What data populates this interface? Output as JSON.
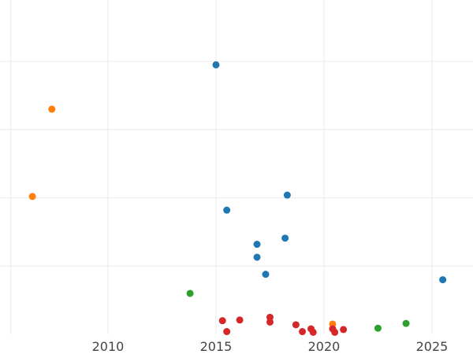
{
  "chart_data": {
    "type": "scatter",
    "title": "",
    "xlabel": "",
    "ylabel": "",
    "xlim": [
      2005.0,
      2026.9
    ],
    "ylim": [
      0,
      4.9
    ],
    "grid": true,
    "legend": "none",
    "x_ticks": [
      2010,
      2015,
      2020,
      2025
    ],
    "x_tick_labels": [
      "2010",
      "2015",
      "2020",
      "2025"
    ],
    "y_gridlines": [
      1,
      2,
      3,
      4
    ],
    "series": [
      {
        "color": "#1f77b4",
        "points": [
          {
            "x": 2015.0,
            "y": 3.95
          },
          {
            "x": 2015.5,
            "y": 1.82
          },
          {
            "x": 2016.9,
            "y": 1.32
          },
          {
            "x": 2016.9,
            "y": 1.13
          },
          {
            "x": 2017.3,
            "y": 0.88
          },
          {
            "x": 2018.2,
            "y": 1.41
          },
          {
            "x": 2018.3,
            "y": 2.04
          },
          {
            "x": 2025.5,
            "y": 0.8
          }
        ]
      },
      {
        "color": "#ff7f0e",
        "points": [
          {
            "x": 2006.5,
            "y": 2.02
          },
          {
            "x": 2007.4,
            "y": 3.3
          },
          {
            "x": 2020.4,
            "y": 0.15
          }
        ]
      },
      {
        "color": "#2ca02c",
        "points": [
          {
            "x": 2013.8,
            "y": 0.6
          },
          {
            "x": 2022.5,
            "y": 0.09
          },
          {
            "x": 2023.8,
            "y": 0.16
          }
        ]
      },
      {
        "color": "#d62728",
        "points": [
          {
            "x": 2015.3,
            "y": 0.2
          },
          {
            "x": 2015.5,
            "y": 0.04
          },
          {
            "x": 2016.1,
            "y": 0.21
          },
          {
            "x": 2017.5,
            "y": 0.25
          },
          {
            "x": 2017.5,
            "y": 0.18
          },
          {
            "x": 2018.7,
            "y": 0.14
          },
          {
            "x": 2019.0,
            "y": 0.04
          },
          {
            "x": 2019.4,
            "y": 0.08
          },
          {
            "x": 2019.5,
            "y": 0.03
          },
          {
            "x": 2020.4,
            "y": 0.08
          },
          {
            "x": 2020.5,
            "y": 0.03
          },
          {
            "x": 2020.9,
            "y": 0.07
          }
        ]
      }
    ]
  }
}
